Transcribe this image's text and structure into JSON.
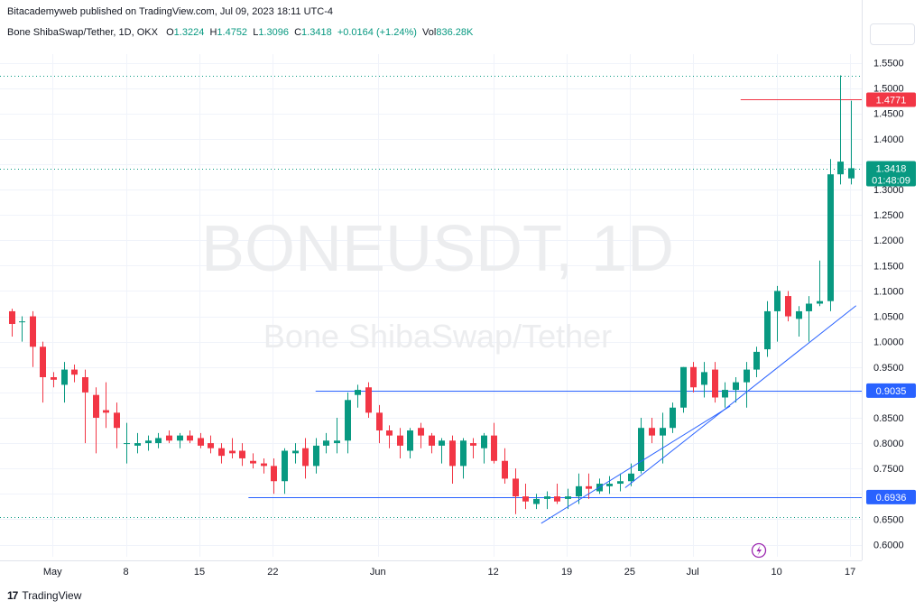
{
  "header": {
    "published": "Bitacademyweb published on TradingView.com, Jul 09, 2023 18:11 UTC-4",
    "symbol": "Bone ShibaSwap/Tether, 1D, OKX",
    "o_label": "O",
    "o_value": "1.3224",
    "h_label": "H",
    "h_value": "1.4752",
    "l_label": "L",
    "l_value": "1.3096",
    "c_label": "C",
    "c_value": "1.3418",
    "change": "+0.0164 (+1.24%)",
    "vol_label": "Vol",
    "vol_value": "836.28K"
  },
  "watermark": {
    "ticker": "BONEUSDT, 1D",
    "name": "Bone ShibaSwap/Tether"
  },
  "footer": {
    "brand": "TradingView",
    "logo_glyph": "17"
  },
  "colors": {
    "up": "#089981",
    "down": "#f23645",
    "line": "#2962ff",
    "grid": "#f0f3fa"
  },
  "chart_data": {
    "type": "candlestick",
    "x_ticks": [
      "May",
      "8",
      "15",
      "22",
      "Jun",
      "12",
      "19",
      "25",
      "Jul",
      "10",
      "17"
    ],
    "y_ticks": [
      "1.5500",
      "1.5000",
      "1.4500",
      "1.4000",
      "1.3500",
      "1.3000",
      "1.2500",
      "1.2000",
      "1.1500",
      "1.1000",
      "1.0500",
      "1.0000",
      "0.9500",
      "0.9000",
      "0.8500",
      "0.8000",
      "0.7500",
      "0.7000",
      "0.6500",
      "0.6000"
    ],
    "ylim": [
      0.58,
      1.57
    ],
    "price_labels": {
      "high_line": "1.4771",
      "last": "1.3418",
      "countdown": "01:48:09",
      "resistance": "0.9035",
      "support": "0.6936"
    },
    "horizontal_lines": [
      0.9035,
      0.6936,
      1.4771
    ],
    "dotted_levels": [
      1.525,
      1.3418,
      0.654
    ],
    "candles": [
      [
        1.06,
        1.065,
        1.01,
        1.035
      ],
      [
        1.04,
        1.05,
        1.0,
        1.04
      ],
      [
        1.05,
        1.06,
        0.95,
        0.99
      ],
      [
        0.99,
        1.0,
        0.88,
        0.93
      ],
      [
        0.93,
        0.94,
        0.91,
        0.925
      ],
      [
        0.915,
        0.96,
        0.88,
        0.945
      ],
      [
        0.945,
        0.955,
        0.92,
        0.935
      ],
      [
        0.93,
        0.945,
        0.8,
        0.9
      ],
      [
        0.895,
        0.91,
        0.78,
        0.85
      ],
      [
        0.865,
        0.92,
        0.83,
        0.86
      ],
      [
        0.86,
        0.88,
        0.79,
        0.83
      ],
      [
        0.8,
        0.84,
        0.76,
        0.8
      ],
      [
        0.795,
        0.82,
        0.78,
        0.8
      ],
      [
        0.8,
        0.815,
        0.785,
        0.805
      ],
      [
        0.8,
        0.82,
        0.79,
        0.81
      ],
      [
        0.815,
        0.825,
        0.8,
        0.805
      ],
      [
        0.805,
        0.82,
        0.79,
        0.815
      ],
      [
        0.815,
        0.825,
        0.8,
        0.805
      ],
      [
        0.81,
        0.82,
        0.79,
        0.795
      ],
      [
        0.8,
        0.815,
        0.78,
        0.79
      ],
      [
        0.79,
        0.8,
        0.76,
        0.775
      ],
      [
        0.785,
        0.81,
        0.77,
        0.78
      ],
      [
        0.785,
        0.8,
        0.755,
        0.77
      ],
      [
        0.765,
        0.78,
        0.75,
        0.76
      ],
      [
        0.76,
        0.77,
        0.74,
        0.755
      ],
      [
        0.755,
        0.77,
        0.7,
        0.725
      ],
      [
        0.725,
        0.79,
        0.7,
        0.785
      ],
      [
        0.78,
        0.8,
        0.76,
        0.785
      ],
      [
        0.79,
        0.81,
        0.73,
        0.755
      ],
      [
        0.755,
        0.81,
        0.74,
        0.795
      ],
      [
        0.795,
        0.82,
        0.78,
        0.805
      ],
      [
        0.8,
        0.85,
        0.78,
        0.805
      ],
      [
        0.805,
        0.9,
        0.78,
        0.885
      ],
      [
        0.895,
        0.915,
        0.87,
        0.905
      ],
      [
        0.91,
        0.92,
        0.85,
        0.86
      ],
      [
        0.86,
        0.875,
        0.8,
        0.825
      ],
      [
        0.825,
        0.835,
        0.79,
        0.815
      ],
      [
        0.815,
        0.83,
        0.77,
        0.795
      ],
      [
        0.785,
        0.83,
        0.77,
        0.825
      ],
      [
        0.83,
        0.84,
        0.79,
        0.815
      ],
      [
        0.815,
        0.82,
        0.78,
        0.795
      ],
      [
        0.795,
        0.81,
        0.76,
        0.805
      ],
      [
        0.805,
        0.815,
        0.72,
        0.755
      ],
      [
        0.755,
        0.81,
        0.73,
        0.805
      ],
      [
        0.8,
        0.81,
        0.77,
        0.795
      ],
      [
        0.79,
        0.82,
        0.76,
        0.815
      ],
      [
        0.815,
        0.84,
        0.76,
        0.765
      ],
      [
        0.765,
        0.79,
        0.72,
        0.73
      ],
      [
        0.73,
        0.75,
        0.66,
        0.695
      ],
      [
        0.695,
        0.72,
        0.67,
        0.685
      ],
      [
        0.68,
        0.7,
        0.67,
        0.69
      ],
      [
        0.69,
        0.705,
        0.67,
        0.695
      ],
      [
        0.695,
        0.72,
        0.68,
        0.685
      ],
      [
        0.69,
        0.71,
        0.67,
        0.695
      ],
      [
        0.695,
        0.74,
        0.68,
        0.715
      ],
      [
        0.715,
        0.74,
        0.69,
        0.71
      ],
      [
        0.705,
        0.73,
        0.7,
        0.72
      ],
      [
        0.715,
        0.735,
        0.7,
        0.72
      ],
      [
        0.72,
        0.74,
        0.705,
        0.725
      ],
      [
        0.725,
        0.76,
        0.715,
        0.74
      ],
      [
        0.745,
        0.85,
        0.74,
        0.83
      ],
      [
        0.83,
        0.85,
        0.8,
        0.815
      ],
      [
        0.815,
        0.86,
        0.76,
        0.83
      ],
      [
        0.83,
        0.88,
        0.82,
        0.87
      ],
      [
        0.87,
        0.95,
        0.86,
        0.95
      ],
      [
        0.95,
        0.96,
        0.9,
        0.91
      ],
      [
        0.915,
        0.96,
        0.89,
        0.94
      ],
      [
        0.945,
        0.96,
        0.88,
        0.89
      ],
      [
        0.89,
        0.92,
        0.87,
        0.905
      ],
      [
        0.905,
        0.93,
        0.88,
        0.92
      ],
      [
        0.92,
        0.96,
        0.87,
        0.945
      ],
      [
        0.945,
        0.99,
        0.93,
        0.98
      ],
      [
        0.985,
        1.08,
        0.97,
        1.06
      ],
      [
        1.06,
        1.11,
        1.0,
        1.1
      ],
      [
        1.09,
        1.1,
        1.04,
        1.05
      ],
      [
        1.045,
        1.07,
        1.01,
        1.06
      ],
      [
        1.06,
        1.09,
        1.0,
        1.075
      ],
      [
        1.075,
        1.16,
        1.07,
        1.08
      ],
      [
        1.08,
        1.36,
        1.06,
        1.33
      ],
      [
        1.33,
        1.525,
        1.31,
        1.355
      ],
      [
        1.322,
        1.475,
        1.31,
        1.342
      ]
    ],
    "trendlines": [
      {
        "from": {
          "i": 50.5,
          "price": 0.642
        },
        "to": {
          "i": 68.5,
          "price": 0.873
        }
      },
      {
        "from": {
          "i": 58.5,
          "price": 0.712
        },
        "to": {
          "i": 80.5,
          "price": 1.071
        }
      }
    ]
  }
}
